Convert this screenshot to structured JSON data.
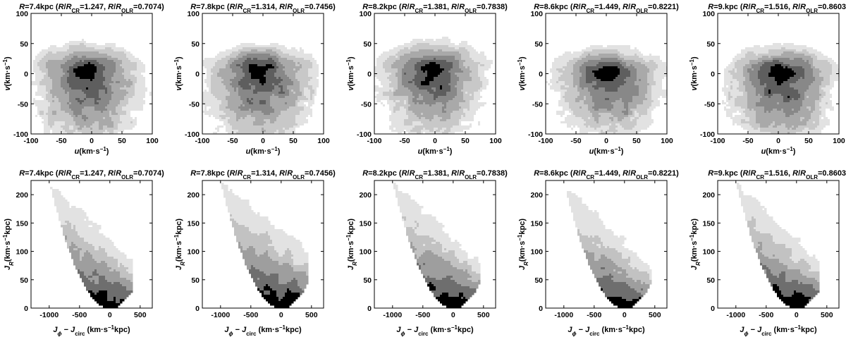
{
  "chart_data": [
    {
      "row": "velocity",
      "type": "contour",
      "panels": [
        {
          "title": {
            "R": "7.4kpc",
            "rcr": "1.247",
            "rolr": "0.7074"
          }
        },
        {
          "title": {
            "R": "7.8kpc",
            "rcr": "1.314",
            "rolr": "0.7456"
          }
        },
        {
          "title": {
            "R": "8.2kpc",
            "rcr": "1.381",
            "rolr": "0.7838"
          }
        },
        {
          "title": {
            "R": "8.6kpc",
            "rcr": "1.449",
            "rolr": "0.8221"
          }
        },
        {
          "title": {
            "R": "9.kpc",
            "rcr": "1.516",
            "rolr": "0.8603"
          }
        }
      ],
      "xlabel": {
        "var": "u",
        "unit": "(km·s",
        "exp": "−1",
        "close": ")"
      },
      "ylabel": {
        "var": "v",
        "unit": "(km·s",
        "exp": "−1",
        "close": ")"
      },
      "xlim": [
        -100,
        100
      ],
      "ylim": [
        -100,
        100
      ],
      "xticks": [
        -100,
        -50,
        0,
        50,
        100
      ],
      "yticks": [
        -100,
        -50,
        0,
        50,
        100
      ],
      "contour_levels": 6,
      "level_colors": [
        "#ffffff",
        "#e2e2e2",
        "#c8c8c8",
        "#a9a9a9",
        "#888888",
        "#5e5e5e",
        "#000000"
      ],
      "shapes": [
        {
          "cx": -5,
          "cy": 8,
          "top": 55,
          "bottom": -100,
          "halfwidth": 100
        },
        {
          "cx": -5,
          "cy": 8,
          "top": 55,
          "bottom": -100,
          "halfwidth": 100
        },
        {
          "cx": -5,
          "cy": 5,
          "top": 60,
          "bottom": -85,
          "halfwidth": 100
        },
        {
          "cx": 5,
          "cy": 3,
          "top": 47,
          "bottom": -85,
          "halfwidth": 100
        },
        {
          "cx": 5,
          "cy": 5,
          "top": 50,
          "bottom": -100,
          "halfwidth": 100
        }
      ]
    },
    {
      "row": "actions",
      "type": "contour",
      "panels": [
        {
          "title": {
            "R": "7.4kpc",
            "rcr": "1.247",
            "rolr": "0.7074"
          }
        },
        {
          "title": {
            "R": "7.8kpc",
            "rcr": "1.314",
            "rolr": "0.7456"
          }
        },
        {
          "title": {
            "R": "8.2kpc",
            "rcr": "1.381",
            "rolr": "0.7838"
          }
        },
        {
          "title": {
            "R": "8.6kpc",
            "rcr": "1.449",
            "rolr": "0.8221"
          }
        },
        {
          "title": {
            "R": "9.kpc",
            "rcr": "1.516",
            "rolr": "0.8603"
          }
        }
      ],
      "xlabel": {
        "a": "J",
        "asub": "ϕ",
        "mid": " − ",
        "b": "J",
        "bsub": "circ",
        "unit": " (km·s",
        "exp": "−1",
        "close": "kpc)"
      },
      "ylabel": {
        "var": "J",
        "sub": "R",
        "unit": "(km·s",
        "exp": "−1",
        "close": "kpc)"
      },
      "xlim": [
        -1300,
        700
      ],
      "ylim": [
        0,
        225
      ],
      "xticks": [
        -1000,
        -500,
        0,
        500
      ],
      "yticks": [
        0,
        50,
        100,
        150,
        200
      ],
      "contour_levels": 5,
      "level_colors": [
        "#ffffff",
        "#e2e2e2",
        "#c2c2c2",
        "#9e9e9e",
        "#6e6e6e",
        "#000000"
      ],
      "shapes": [
        {
          "xmin": 0,
          "curv": 0.000225,
          "xright": 360,
          "yright": 85
        },
        {
          "xmin": 0,
          "curv": 0.000225,
          "xright": 440,
          "yright": 100
        },
        {
          "xmin": 0,
          "curv": 0.000225,
          "xright": 440,
          "yright": 80
        },
        {
          "xmin": 0,
          "curv": 0.000225,
          "xright": 440,
          "yright": 70
        },
        {
          "xmin": 0,
          "curv": 0.000225,
          "xright": 380,
          "yright": 80
        }
      ]
    }
  ]
}
